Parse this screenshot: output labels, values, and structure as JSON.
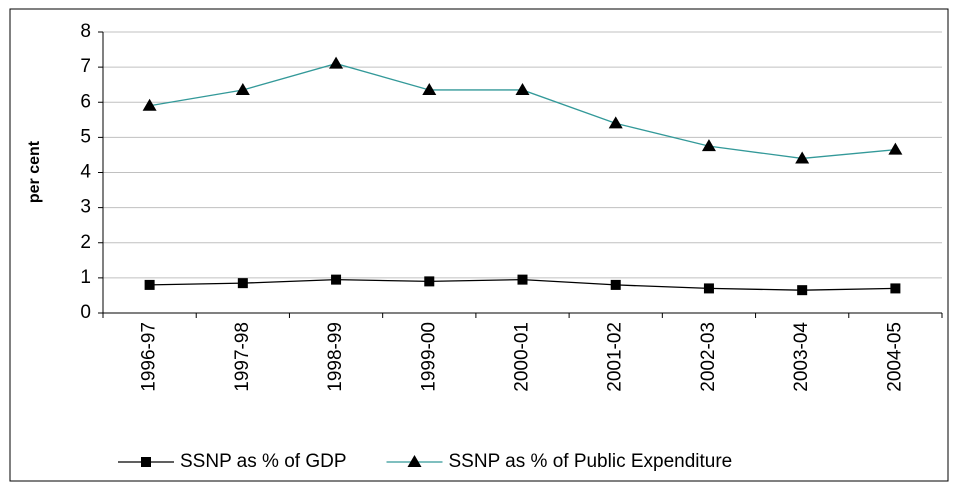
{
  "chart_data": {
    "type": "line",
    "y_label": "per cent",
    "categories": [
      "1996-97",
      "1997-98",
      "1998-99",
      "1999-00",
      "2000-01",
      "2001-02",
      "2002-03",
      "2003-04",
      "2004-05"
    ],
    "series": [
      {
        "name": "SSNP as % of GDP",
        "color": "#000000",
        "marker": "square",
        "marker_color": "#000000",
        "values": [
          0.8,
          0.85,
          0.95,
          0.9,
          0.95,
          0.8,
          0.7,
          0.65,
          0.7
        ]
      },
      {
        "name": "SSNP as % of Public Expenditure",
        "color": "#339999",
        "marker": "triangle",
        "marker_color": "#000000",
        "values": [
          5.9,
          6.35,
          7.1,
          6.35,
          6.35,
          5.4,
          4.75,
          4.4,
          4.65
        ]
      }
    ],
    "ylim": [
      0,
      8
    ],
    "yticks": [
      0,
      1,
      2,
      3,
      4,
      5,
      6,
      7,
      8
    ],
    "grid": true,
    "legend": "bottom"
  }
}
